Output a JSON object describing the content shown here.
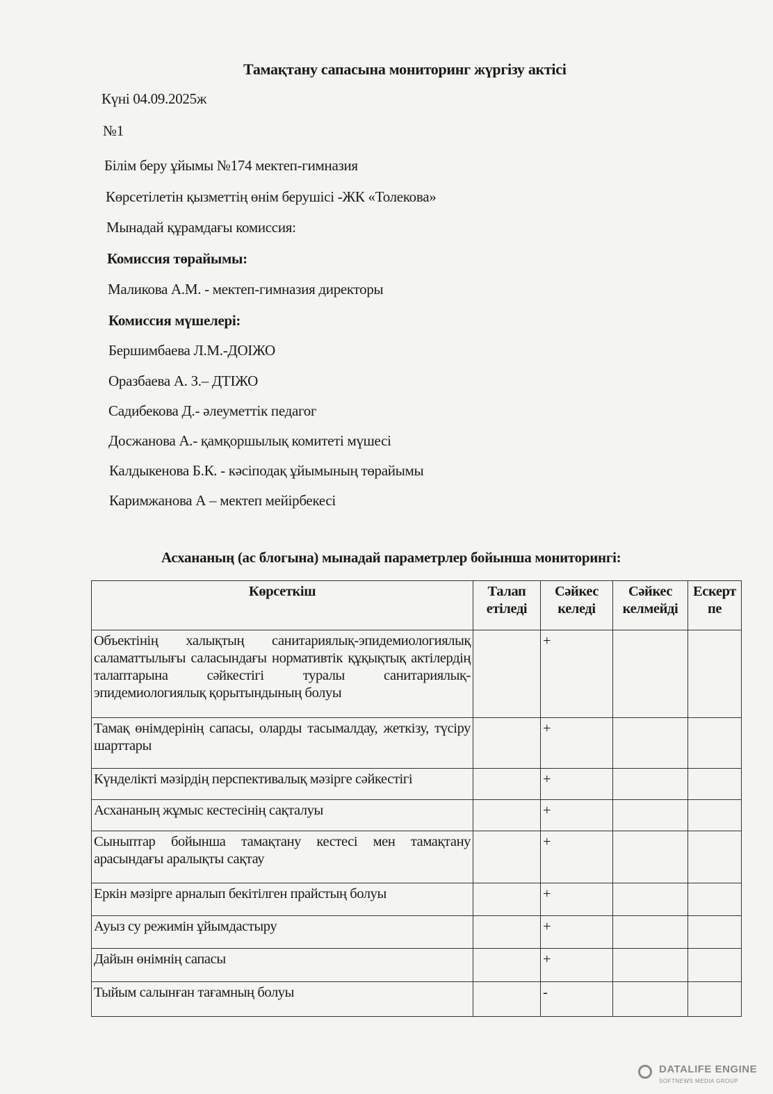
{
  "title": "Тамақтану сапасына мониторинг жүргізу актісі",
  "date_line": "Күні 04.09.2025ж",
  "number": "№1",
  "organization": "Білім беру ұйымы  №174 мектеп-гимназия",
  "provider": "Көрсетілетін қызметтің өнім берушісі -ЖК «Толекова»",
  "commission_intro": "Мынадай құрамдағы комиссия:",
  "chair_heading": "Комиссия төрайымы:",
  "chair": "Маликова А.М. - мектеп-гимназия директоры",
  "members_heading": "Комиссия мүшелері:",
  "members": [
    "Бершимбаева Л.М.-ДОІЖО",
    "Оразбаева А. З.– ДТІЖО",
    "Садибекова Д.- әлеуметтік педагог",
    "Досжанова А.- қамқоршылық  комитеті мүшесі",
    "Калдыкенова Б.К. - кәсіподақ ұйымының төрайымы",
    "Каримжанова А – мектеп мейірбекесі"
  ],
  "table_title": "Асхананың  (ас блогына) мынадай параметрлер бойынша мониторингі:",
  "table": {
    "headers": [
      "Көрсеткіш",
      "Талап етіледі",
      "Сәйкес келеді",
      "Сәйкес келмейді",
      "Ескерт пе"
    ],
    "rows": [
      {
        "indicator": "Объектінің халықтың санитариялық-эпидемиологиялық саламаттылығы саласындағы нормативтік құқықтық актілердің талаптарына сәйкестігі туралы санитариялық-эпидемиологиялық қорытындының болуы",
        "required": "",
        "complies": "+",
        "not_complies": "",
        "note": ""
      },
      {
        "indicator": "Тамақ өнімдерінің сапасы, оларды тасымалдау, жеткізу, түсіру шарттары",
        "required": "",
        "complies": "+",
        "not_complies": "",
        "note": ""
      },
      {
        "indicator": "Күнделікті мәзірдің перспективалық мәзірге сәйкестігі",
        "required": "",
        "complies": "+",
        "not_complies": "",
        "note": ""
      },
      {
        "indicator": "Асхананың жұмыс кестесінің сақталуы",
        "required": "",
        "complies": "+",
        "not_complies": "",
        "note": ""
      },
      {
        "indicator": "Сыныптар бойынша тамақтану кестесі мен тамақтану арасындағы аралықты сақтау",
        "required": "",
        "complies": "+",
        "not_complies": "",
        "note": ""
      },
      {
        "indicator": "Еркін мәзірге арналып бекітілген прайстың болуы",
        "required": "",
        "complies": "+",
        "not_complies": "",
        "note": ""
      },
      {
        "indicator": "Ауыз су режимін ұйымдастыру",
        "required": "",
        "complies": "+",
        "not_complies": "",
        "note": ""
      },
      {
        "indicator": "Дайын өнімнің сапасы",
        "required": "",
        "complies": "+",
        "not_complies": "",
        "note": ""
      },
      {
        "indicator": "Тыйым салынған тағамның болуы",
        "required": "",
        "complies": "-",
        "not_complies": "",
        "note": ""
      }
    ]
  },
  "watermark": {
    "name": "DATALIFE ENGINE",
    "sub": "SOFTNEWS MEDIA GROUP"
  }
}
